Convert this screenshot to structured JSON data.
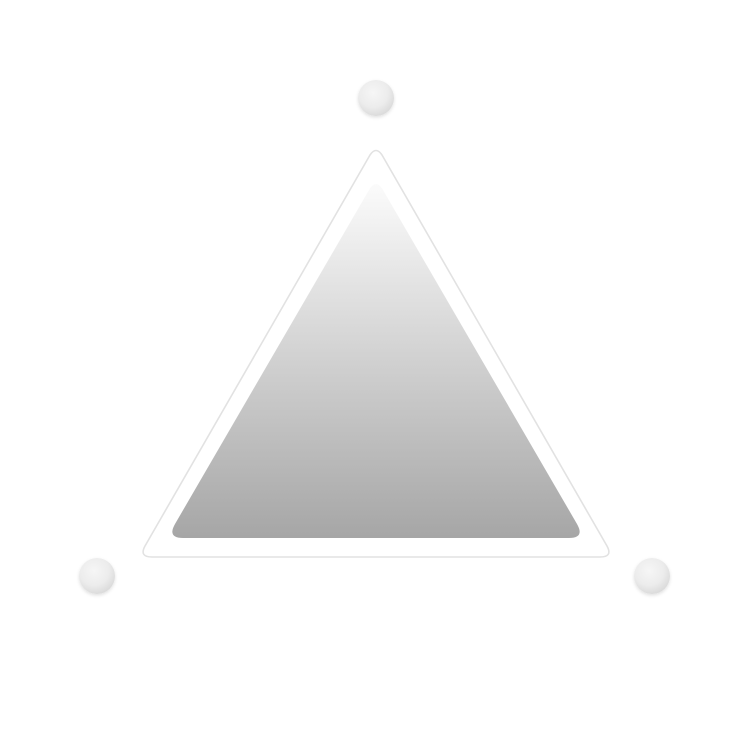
{
  "colors": {
    "background": "#ffffff",
    "frame_outline": "#e2e2e2",
    "triangle_top": "#fbfbfb",
    "triangle_bottom": "#a6a6a6",
    "knob_light": "#f6f6f6",
    "knob_dark": "#d4d4d4"
  },
  "knobs": {
    "count": 3,
    "shape": "sphere"
  },
  "triangle": {
    "orientation": "pointing-up",
    "fill": "vertical-gradient"
  }
}
